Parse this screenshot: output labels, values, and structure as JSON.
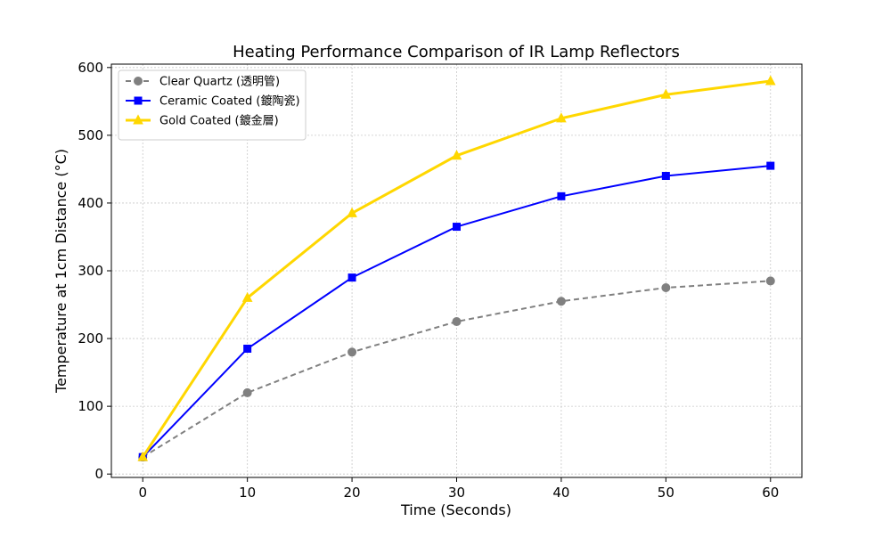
{
  "chart_data": {
    "type": "line",
    "title": "Heating Performance Comparison of IR Lamp Reflectors",
    "xlabel": "Time (Seconds)",
    "ylabel": "Temperature at 1cm Distance (°C)",
    "x": [
      0,
      10,
      20,
      30,
      40,
      50,
      60
    ],
    "xlim": [
      -3,
      63
    ],
    "ylim": [
      -5,
      605
    ],
    "xticks": [
      0,
      10,
      20,
      30,
      40,
      50,
      60
    ],
    "yticks": [
      0,
      100,
      200,
      300,
      400,
      500,
      600
    ],
    "grid": true,
    "legend_position": "top-left",
    "series": [
      {
        "name": "Clear Quartz (透明管)",
        "values": [
          25,
          120,
          180,
          225,
          255,
          275,
          285
        ],
        "color": "#808080",
        "dashed": true,
        "marker": "circle"
      },
      {
        "name": "Ceramic Coated (鍍陶瓷)",
        "values": [
          25,
          185,
          290,
          365,
          410,
          440,
          455
        ],
        "color": "#0000ff",
        "dashed": false,
        "marker": "square"
      },
      {
        "name": "Gold Coated (鍍金層)",
        "values": [
          25,
          260,
          385,
          470,
          525,
          560,
          580
        ],
        "color": "#ffd700",
        "dashed": false,
        "marker": "triangle"
      }
    ]
  }
}
